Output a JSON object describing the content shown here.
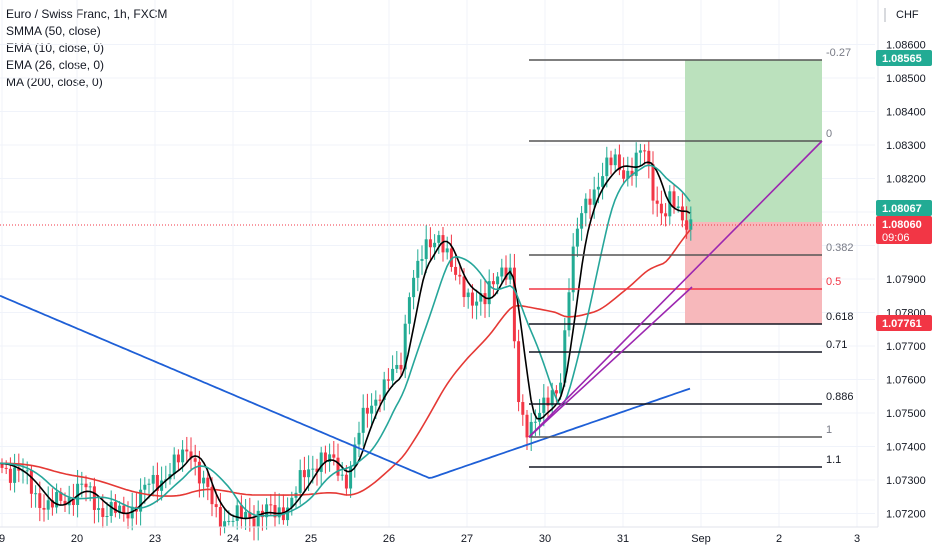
{
  "legend": {
    "title": "Euro / Swiss Franc, 1h, FXCM",
    "ind1": "SMMA (50, close)",
    "ind2": "EMA (10, close, 0)",
    "ind3": "EMA (26, close, 0)",
    "ind4": "MA (200, close, 0)"
  },
  "currency": "CHF",
  "price_axis": {
    "ticks": [
      1.086,
      1.085,
      1.084,
      1.083,
      1.082,
      1.081,
      1.08,
      1.079,
      1.078,
      1.077,
      1.076,
      1.075,
      1.074,
      1.073,
      1.072
    ],
    "tick_labels": [
      "1.08600",
      "1.08500",
      "1.08400",
      "1.08300",
      "1.08200",
      "1.08100",
      "1.08000",
      "1.07900",
      "1.07800",
      "1.07700",
      "1.07600",
      "1.07500",
      "1.07400",
      "1.07300",
      "1.07200"
    ],
    "visible": [
      "1.08600",
      "1.08500",
      "1.08400",
      "1.08300",
      "1.08200",
      "1.07900",
      "1.07800",
      "1.07700",
      "1.07600",
      "1.07500",
      "1.07400",
      "1.07300",
      "1.07200"
    ]
  },
  "time_axis": {
    "labels": [
      "9",
      "20",
      "23",
      "24",
      "25",
      "26",
      "27",
      "30",
      "31",
      "Sep",
      "2",
      "3"
    ]
  },
  "price_tags": [
    {
      "label": "1.08565",
      "color": "#22ab94"
    },
    {
      "label": "1.08067",
      "color": "#22ab94"
    },
    {
      "label": "1.08060",
      "sub": "09:06",
      "color": "#f23645"
    },
    {
      "label": "1.07761",
      "color": "#f23645"
    }
  ],
  "fib_levels": [
    {
      "label": "-0.27",
      "color": "#787b86"
    },
    {
      "label": "0",
      "color": "#787b86"
    },
    {
      "label": "0.382",
      "color": "#787b86"
    },
    {
      "label": "0.5",
      "color": "#f23645"
    },
    {
      "label": "0.618",
      "color": "#131722"
    },
    {
      "label": "0.71",
      "color": "#131722"
    },
    {
      "label": "0.886",
      "color": "#131722"
    },
    {
      "label": "1",
      "color": "#787b86"
    },
    {
      "label": "1.1",
      "color": "#131722"
    }
  ],
  "colors": {
    "up": "#22ab94",
    "down": "#f23645",
    "ema10": "#000000",
    "ema26": "#26a69a",
    "smma50": "#e53935",
    "ma200": "#1e5fd6",
    "trend": "#9c27b0",
    "profit": "#b7dfb9",
    "loss": "#f7b4b7"
  }
}
